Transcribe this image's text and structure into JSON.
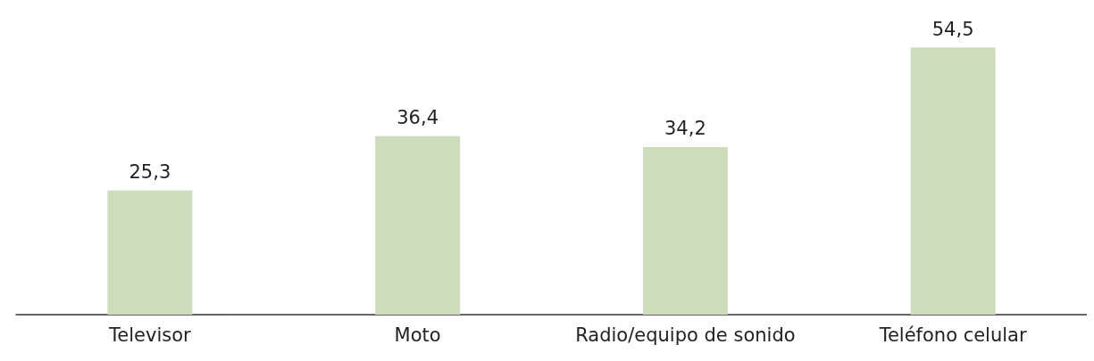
{
  "chart_data": {
    "type": "bar",
    "categories": [
      "Televisor",
      "Moto",
      "Radio/equipo de sonido",
      "Teléfono celular"
    ],
    "values": [
      25.3,
      36.4,
      34.2,
      54.5
    ],
    "value_labels": [
      "25,3",
      "36,4",
      "34,2",
      "54,5"
    ],
    "color": "#cddcbb"
  }
}
